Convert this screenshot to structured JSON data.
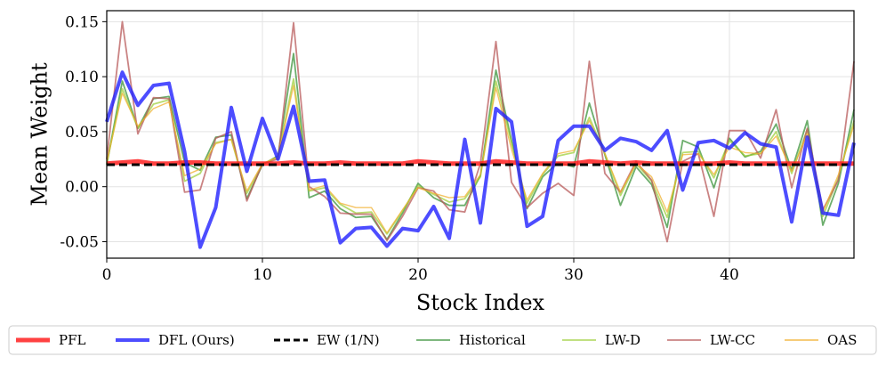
{
  "chart_data": {
    "type": "line",
    "title": "",
    "xlabel": "Stock Index",
    "ylabel": "Mean Weight",
    "xlim": [
      0,
      48
    ],
    "ylim": [
      -0.065,
      0.16
    ],
    "xticks": [
      0,
      10,
      20,
      30,
      40
    ],
    "xtick_labels": [
      "0",
      "10",
      "20",
      "30",
      "40"
    ],
    "yticks": [
      -0.05,
      0.0,
      0.05,
      0.1,
      0.15
    ],
    "ytick_labels": [
      "-0.05",
      "0.00",
      "0.05",
      "0.10",
      "0.15"
    ],
    "grid": true,
    "legend_position": "bottom",
    "x": [
      0,
      1,
      2,
      3,
      4,
      5,
      6,
      7,
      8,
      9,
      10,
      11,
      12,
      13,
      14,
      15,
      16,
      17,
      18,
      19,
      20,
      21,
      22,
      23,
      24,
      25,
      26,
      27,
      28,
      29,
      30,
      31,
      32,
      33,
      34,
      35,
      36,
      37,
      38,
      39,
      40,
      41,
      42,
      43,
      44,
      45,
      46,
      47,
      48
    ],
    "series": [
      {
        "name": "PFL",
        "color": "#ff2020",
        "values": [
          0.021,
          0.022,
          0.023,
          0.021,
          0.021,
          0.022,
          0.022,
          0.021,
          0.021,
          0.021,
          0.021,
          0.021,
          0.022,
          0.021,
          0.021,
          0.022,
          0.021,
          0.021,
          0.021,
          0.021,
          0.023,
          0.022,
          0.021,
          0.021,
          0.021,
          0.023,
          0.022,
          0.021,
          0.021,
          0.021,
          0.021,
          0.023,
          0.022,
          0.021,
          0.022,
          0.021,
          0.021,
          0.021,
          0.021,
          0.021,
          0.022,
          0.021,
          0.021,
          0.021,
          0.021,
          0.021,
          0.021,
          0.021,
          0.021
        ]
      },
      {
        "name": "DFL (Ours)",
        "color": "#2020ff",
        "values": [
          0.059,
          0.104,
          0.074,
          0.092,
          0.094,
          0.032,
          -0.055,
          -0.019,
          0.072,
          0.014,
          0.062,
          0.025,
          0.073,
          0.005,
          0.006,
          -0.051,
          -0.038,
          -0.037,
          -0.054,
          -0.038,
          -0.04,
          -0.018,
          -0.047,
          0.043,
          -0.033,
          0.071,
          0.059,
          -0.036,
          -0.027,
          0.042,
          0.055,
          0.055,
          0.033,
          0.044,
          0.041,
          0.033,
          0.051,
          -0.003,
          0.04,
          0.042,
          0.035,
          0.049,
          0.039,
          0.036,
          -0.032,
          0.045,
          -0.024,
          -0.026,
          0.04
        ]
      },
      {
        "name": "EW (1/N)",
        "color": "#000000",
        "values": [
          0.02,
          0.02,
          0.02,
          0.02,
          0.02,
          0.02,
          0.02,
          0.02,
          0.02,
          0.02,
          0.02,
          0.02,
          0.02,
          0.02,
          0.02,
          0.02,
          0.02,
          0.02,
          0.02,
          0.02,
          0.02,
          0.02,
          0.02,
          0.02,
          0.02,
          0.02,
          0.02,
          0.02,
          0.02,
          0.02,
          0.02,
          0.02,
          0.02,
          0.02,
          0.02,
          0.02,
          0.02,
          0.02,
          0.02,
          0.02,
          0.02,
          0.02,
          0.02,
          0.02,
          0.02,
          0.02,
          0.02,
          0.02,
          0.02
        ]
      },
      {
        "name": "Historical",
        "color": "#2e8b2e",
        "values": [
          0.02,
          0.096,
          0.053,
          0.08,
          0.082,
          0.022,
          0.015,
          0.045,
          0.047,
          -0.011,
          0.02,
          0.028,
          0.121,
          -0.01,
          -0.004,
          -0.02,
          -0.028,
          -0.027,
          -0.048,
          -0.024,
          0.003,
          -0.01,
          -0.017,
          -0.017,
          0.01,
          0.106,
          0.042,
          -0.02,
          0.009,
          0.022,
          0.018,
          0.076,
          0.029,
          -0.017,
          0.018,
          0.002,
          -0.037,
          0.042,
          0.036,
          -0.001,
          0.044,
          0.027,
          0.032,
          0.057,
          0.015,
          0.06,
          -0.035,
          0.003,
          0.07
        ]
      },
      {
        "name": "LW-D",
        "color": "#9acd32",
        "values": [
          0.021,
          0.089,
          0.053,
          0.075,
          0.079,
          0.005,
          0.012,
          0.04,
          0.043,
          -0.006,
          0.02,
          0.027,
          0.098,
          -0.004,
          -0.001,
          -0.016,
          -0.024,
          -0.023,
          -0.043,
          -0.022,
          0.001,
          -0.007,
          -0.014,
          -0.011,
          0.009,
          0.096,
          0.04,
          -0.015,
          0.011,
          0.028,
          0.031,
          0.063,
          0.03,
          -0.008,
          0.021,
          0.005,
          -0.028,
          0.031,
          0.032,
          0.008,
          0.042,
          0.028,
          0.03,
          0.05,
          0.012,
          0.052,
          -0.027,
          0.008,
          0.06
        ]
      },
      {
        "name": "LW-CC",
        "color": "#b85a5a",
        "values": [
          0.025,
          0.15,
          0.048,
          0.081,
          0.08,
          -0.005,
          -0.003,
          0.044,
          0.05,
          -0.013,
          0.021,
          0.025,
          0.149,
          0.0,
          -0.009,
          -0.024,
          -0.025,
          -0.025,
          -0.049,
          -0.027,
          -0.001,
          -0.004,
          -0.021,
          -0.023,
          0.021,
          0.132,
          0.004,
          -0.019,
          -0.006,
          0.003,
          -0.008,
          0.114,
          0.012,
          -0.005,
          0.023,
          0.006,
          -0.05,
          0.023,
          0.03,
          -0.027,
          0.051,
          0.051,
          0.026,
          0.07,
          -0.001,
          0.053,
          -0.021,
          0.006,
          0.114
        ]
      },
      {
        "name": "OAS",
        "color": "#f0b030",
        "values": [
          0.022,
          0.085,
          0.055,
          0.071,
          0.077,
          0.01,
          0.016,
          0.039,
          0.043,
          -0.004,
          0.021,
          0.027,
          0.092,
          -0.003,
          0.001,
          -0.015,
          -0.019,
          -0.019,
          -0.042,
          -0.021,
          -0.001,
          -0.006,
          -0.01,
          -0.009,
          0.011,
          0.09,
          0.034,
          -0.012,
          0.012,
          0.03,
          0.033,
          0.06,
          0.03,
          -0.005,
          0.021,
          0.009,
          -0.023,
          0.029,
          0.03,
          0.011,
          0.036,
          0.031,
          0.03,
          0.046,
          0.014,
          0.048,
          -0.023,
          0.011,
          0.056
        ]
      }
    ]
  }
}
